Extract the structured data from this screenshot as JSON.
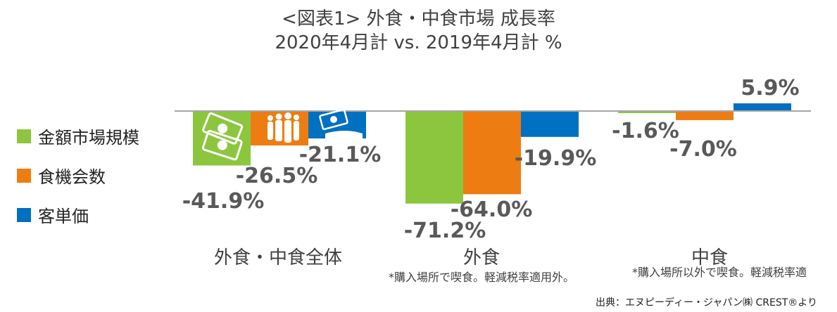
{
  "title_line1": "<図表1> 外食・中食市場 成長率",
  "title_line2": "2020年4月計 vs. 2019年4月計 %",
  "legend": [
    {
      "label": "金額市場規模",
      "color": "#8cc63f"
    },
    {
      "label": "食機会数",
      "color": "#ed7d12"
    },
    {
      "label": "客単価",
      "color": "#0070c0"
    }
  ],
  "notes": {
    "gaishoku": "*購入場所で喫食。軽減税率適用外。",
    "nakashoku": "*購入場所以外で喫食。軽減税率適"
  },
  "source": "出典：エヌピーディー・ジャパン㈱ CREST®より",
  "chart_data": {
    "type": "bar",
    "title": "<図表1> 外食・中食市場 成長率",
    "subtitle": "2020年4月計 vs. 2019年4月計 %",
    "categories": [
      "外食・中食全体",
      "外食",
      "中食"
    ],
    "series": [
      {
        "name": "金額市場規模",
        "color": "#8cc63f",
        "values": [
          -41.9,
          -71.2,
          -1.6
        ],
        "labels": [
          "-41.9%",
          "-71.2%",
          "-1.6%"
        ]
      },
      {
        "name": "食機会数",
        "color": "#ed7d12",
        "values": [
          -26.5,
          -64.0,
          -7.0
        ],
        "labels": [
          "-26.5%",
          "-64.0%",
          "-7.0%"
        ]
      },
      {
        "name": "客単価",
        "color": "#0070c0",
        "values": [
          -21.1,
          -19.9,
          5.9
        ],
        "labels": [
          "-21.1%",
          "-19.9%",
          "5.9%"
        ]
      }
    ],
    "legend_position": "left",
    "grid": false
  }
}
